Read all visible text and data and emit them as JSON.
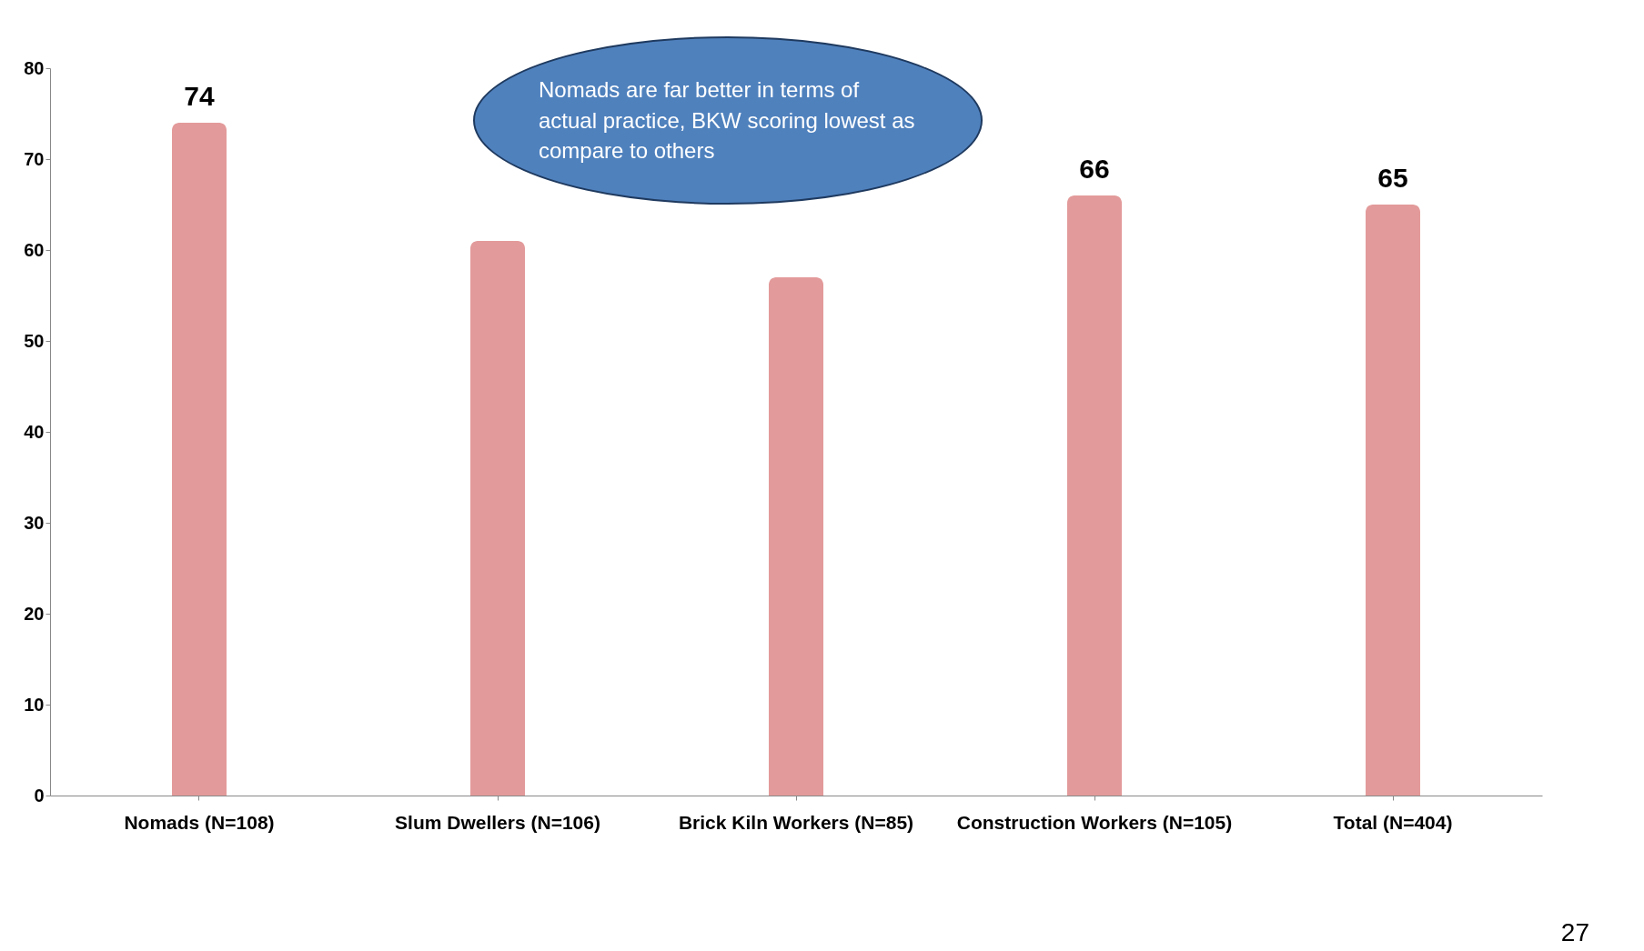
{
  "chart_data": {
    "type": "bar",
    "categories": [
      "Nomads (N=108)",
      "Slum Dwellers (N=106)",
      "Brick Kiln Workers (N=85)",
      "Construction Workers (N=105)",
      "Total (N=404)"
    ],
    "values": [
      74,
      61,
      57,
      66,
      65
    ],
    "value_labels": [
      "74",
      null,
      null,
      "66",
      "65"
    ],
    "color": "#e39a9a",
    "ylim": [
      0,
      80
    ],
    "yticks": [
      0,
      10,
      20,
      30,
      40,
      50,
      60,
      70,
      80
    ],
    "grid": false,
    "annotations": [
      "Nomads are  far better in terms of actual practice, BKW scoring lowest as compare to others",
      "27"
    ]
  }
}
